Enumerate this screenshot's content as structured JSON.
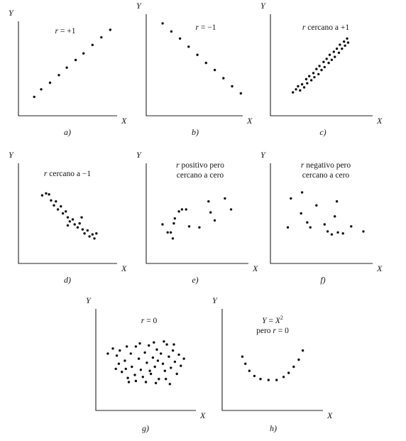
{
  "chart_data": [
    {
      "type": "scatter",
      "caption": "a)",
      "xlabel": "X",
      "ylabel": "Y",
      "title_lines": [
        "r = +1"
      ],
      "xlim": [
        0,
        10
      ],
      "ylim": [
        0,
        10
      ],
      "points": [
        [
          1.6,
          2.0
        ],
        [
          2.3,
          2.8
        ],
        [
          3.2,
          3.5
        ],
        [
          4.1,
          4.3
        ],
        [
          4.9,
          5.1
        ],
        [
          5.8,
          5.9
        ],
        [
          6.6,
          6.6
        ],
        [
          7.5,
          7.5
        ],
        [
          8.4,
          8.3
        ],
        [
          9.3,
          9.1
        ]
      ]
    },
    {
      "type": "scatter",
      "caption": "b)",
      "xlabel": "X",
      "ylabel": "Y",
      "title_lines": [
        "r = −1"
      ],
      "xlim": [
        0,
        10
      ],
      "ylim": [
        0,
        10
      ],
      "points": [
        [
          1.7,
          9.1
        ],
        [
          2.6,
          8.3
        ],
        [
          3.5,
          7.6
        ],
        [
          4.4,
          6.8
        ],
        [
          5.3,
          6.0
        ],
        [
          6.2,
          5.2
        ],
        [
          7.1,
          4.5
        ],
        [
          8.0,
          3.7
        ],
        [
          8.9,
          2.9
        ],
        [
          9.8,
          2.2
        ]
      ]
    },
    {
      "type": "scatter",
      "caption": "c)",
      "xlabel": "X",
      "ylabel": "Y",
      "title_lines": [
        "r cercano a +1"
      ],
      "xlim": [
        0,
        10
      ],
      "ylim": [
        0,
        10
      ],
      "points": [
        [
          2.2,
          2.3
        ],
        [
          2.5,
          2.6
        ],
        [
          2.7,
          2.9
        ],
        [
          2.9,
          2.5
        ],
        [
          3.1,
          3.1
        ],
        [
          3.3,
          2.8
        ],
        [
          3.5,
          3.6
        ],
        [
          3.6,
          3.2
        ],
        [
          3.8,
          3.9
        ],
        [
          4.0,
          3.5
        ],
        [
          4.2,
          4.2
        ],
        [
          4.3,
          3.8
        ],
        [
          4.5,
          4.6
        ],
        [
          4.7,
          4.1
        ],
        [
          4.8,
          4.9
        ],
        [
          5.0,
          4.5
        ],
        [
          5.2,
          5.3
        ],
        [
          5.3,
          4.8
        ],
        [
          5.5,
          5.6
        ],
        [
          5.7,
          5.2
        ],
        [
          5.8,
          6.0
        ],
        [
          6.0,
          5.5
        ],
        [
          6.2,
          6.3
        ],
        [
          6.3,
          5.8
        ],
        [
          6.5,
          6.6
        ],
        [
          6.7,
          6.2
        ],
        [
          6.8,
          7.0
        ],
        [
          7.0,
          6.6
        ],
        [
          7.2,
          7.3
        ],
        [
          7.3,
          6.9
        ],
        [
          7.5,
          7.6
        ],
        [
          7.6,
          7.2
        ]
      ]
    },
    {
      "type": "scatter",
      "caption": "d)",
      "xlabel": "X",
      "ylabel": "Y",
      "title_lines": [
        "r cercano a −1"
      ],
      "xlim": [
        0,
        10
      ],
      "ylim": [
        0,
        10
      ],
      "points": [
        [
          2.4,
          6.8
        ],
        [
          2.8,
          7.0
        ],
        [
          3.1,
          6.9
        ],
        [
          3.3,
          6.3
        ],
        [
          3.6,
          5.8
        ],
        [
          3.8,
          6.2
        ],
        [
          4.0,
          5.4
        ],
        [
          4.3,
          5.7
        ],
        [
          4.5,
          5.0
        ],
        [
          4.8,
          5.2
        ],
        [
          5.0,
          4.6
        ],
        [
          5.2,
          4.2
        ],
        [
          5.5,
          4.4
        ],
        [
          5.7,
          3.9
        ],
        [
          6.0,
          3.6
        ],
        [
          6.2,
          4.0
        ],
        [
          6.5,
          3.4
        ],
        [
          6.7,
          3.0
        ],
        [
          7.0,
          3.3
        ],
        [
          7.2,
          2.7
        ],
        [
          7.5,
          2.9
        ],
        [
          7.7,
          2.5
        ],
        [
          7.9,
          3.0
        ],
        [
          6.4,
          4.6
        ],
        [
          5.0,
          3.8
        ]
      ]
    },
    {
      "type": "scatter",
      "caption": "e)",
      "xlabel": "X",
      "ylabel": "Y",
      "title_lines": [
        "r positivo pero",
        "cercano a cero"
      ],
      "xlim": [
        0,
        10
      ],
      "ylim": [
        0,
        10
      ],
      "points": [
        [
          1.6,
          3.9
        ],
        [
          2.1,
          3.1
        ],
        [
          2.4,
          3.1
        ],
        [
          2.6,
          2.5
        ],
        [
          2.8,
          4.5
        ],
        [
          3.2,
          5.2
        ],
        [
          3.5,
          5.4
        ],
        [
          3.9,
          5.4
        ],
        [
          2.7,
          4.0
        ],
        [
          4.2,
          3.7
        ],
        [
          5.2,
          3.6
        ],
        [
          6.1,
          6.2
        ],
        [
          6.3,
          5.1
        ],
        [
          6.7,
          4.3
        ],
        [
          7.7,
          6.5
        ],
        [
          8.3,
          5.4
        ]
      ]
    },
    {
      "type": "scatter",
      "caption": "f)",
      "xlabel": "X",
      "ylabel": "Y",
      "title_lines": [
        "r negativo pero",
        "cercano a cero"
      ],
      "xlim": [
        0,
        10
      ],
      "ylim": [
        0,
        10
      ],
      "points": [
        [
          1.7,
          3.6
        ],
        [
          2.0,
          6.5
        ],
        [
          3.1,
          7.1
        ],
        [
          3.0,
          5.0
        ],
        [
          3.6,
          4.1
        ],
        [
          3.9,
          3.6
        ],
        [
          4.5,
          5.8
        ],
        [
          5.3,
          3.9
        ],
        [
          5.6,
          3.2
        ],
        [
          6.0,
          2.9
        ],
        [
          6.3,
          4.7
        ],
        [
          6.6,
          3.1
        ],
        [
          7.1,
          3.0
        ],
        [
          7.9,
          3.7
        ],
        [
          9.1,
          3.2
        ],
        [
          6.5,
          6.2
        ]
      ]
    },
    {
      "type": "scatter",
      "caption": "g)",
      "xlabel": "X",
      "ylabel": "Y",
      "title_lines": [
        "r = 0"
      ],
      "xlim": [
        0,
        10
      ],
      "ylim": [
        0,
        10
      ],
      "points": [
        [
          1.2,
          5.6
        ],
        [
          1.7,
          6.1
        ],
        [
          2.1,
          5.4
        ],
        [
          2.3,
          4.6
        ],
        [
          2.6,
          3.8
        ],
        [
          2.9,
          4.9
        ],
        [
          3.1,
          6.3
        ],
        [
          3.2,
          3.2
        ],
        [
          3.5,
          5.6
        ],
        [
          3.6,
          4.3
        ],
        [
          3.9,
          3.5
        ],
        [
          4.0,
          6.3
        ],
        [
          4.3,
          5.1
        ],
        [
          4.5,
          4.0
        ],
        [
          4.7,
          3.3
        ],
        [
          4.9,
          5.7
        ],
        [
          5.1,
          4.7
        ],
        [
          5.3,
          6.4
        ],
        [
          5.5,
          3.6
        ],
        [
          5.7,
          5.2
        ],
        [
          5.9,
          4.3
        ],
        [
          6.1,
          6.0
        ],
        [
          6.3,
          3.1
        ],
        [
          6.5,
          5.6
        ],
        [
          6.7,
          4.6
        ],
        [
          6.9,
          3.9
        ],
        [
          7.1,
          6.5
        ],
        [
          7.3,
          5.3
        ],
        [
          7.5,
          4.2
        ],
        [
          7.7,
          5.9
        ],
        [
          7.9,
          4.8
        ],
        [
          8.1,
          3.6
        ],
        [
          8.3,
          5.5
        ],
        [
          8.5,
          4.4
        ],
        [
          3.0,
          4.1
        ],
        [
          4.0,
          2.9
        ],
        [
          5.0,
          2.8
        ],
        [
          6.0,
          2.7
        ],
        [
          7.0,
          3.1
        ],
        [
          4.4,
          6.6
        ],
        [
          5.8,
          6.7
        ],
        [
          6.8,
          6.8
        ],
        [
          7.8,
          6.5
        ],
        [
          2.4,
          5.9
        ],
        [
          3.3,
          2.8
        ],
        [
          8.8,
          5.1
        ],
        [
          2.0,
          4.1
        ],
        [
          5.4,
          3.9
        ],
        [
          6.2,
          4.9
        ],
        [
          7.4,
          2.6
        ]
      ]
    },
    {
      "type": "scatter",
      "caption": "h)",
      "xlabel": "X",
      "ylabel": "Y",
      "title_lines": [
        "Y = X",
        "pero r = 0"
      ],
      "title_superscript": "2",
      "xlim": [
        0,
        10
      ],
      "ylim": [
        0,
        10
      ],
      "points": [
        [
          2.0,
          5.3
        ],
        [
          2.3,
          4.6
        ],
        [
          2.7,
          3.9
        ],
        [
          3.2,
          3.4
        ],
        [
          3.8,
          3.1
        ],
        [
          4.6,
          3.0
        ],
        [
          5.4,
          3.0
        ],
        [
          6.1,
          3.3
        ],
        [
          6.6,
          3.7
        ],
        [
          7.1,
          4.3
        ],
        [
          7.6,
          5.0
        ],
        [
          8.0,
          5.9
        ]
      ]
    }
  ]
}
